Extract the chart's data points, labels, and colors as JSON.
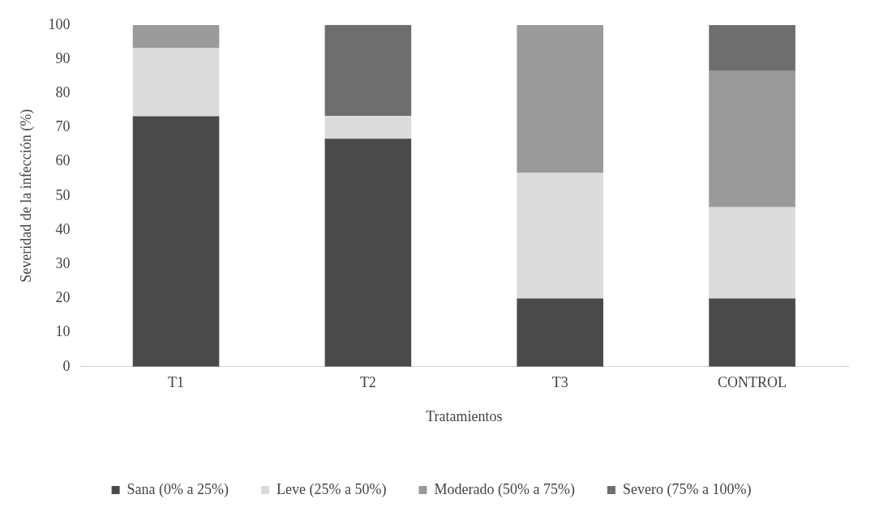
{
  "chart_data": {
    "type": "bar",
    "stacked": true,
    "xlabel": "Tratamientos",
    "ylabel": "Severidad de la infección (%)",
    "categories": [
      "T1",
      "T2",
      "T3",
      "CONTROL"
    ],
    "series": [
      {
        "name": "Sana (0% a 25%)",
        "color": "#4a4a4a",
        "values": [
          73.3,
          66.7,
          20,
          20
        ]
      },
      {
        "name": "Leve (25% a 50%)",
        "color": "#dcdcdc",
        "values": [
          20,
          6.7,
          36.7,
          26.7
        ]
      },
      {
        "name": "Moderado (50% a 75%)",
        "color": "#9a9a9a",
        "values": [
          6.7,
          0,
          43.3,
          40
        ]
      },
      {
        "name": "Severo (75% a 100%)",
        "color": "#6e6e6e",
        "values": [
          0,
          26.7,
          0,
          13.3
        ]
      }
    ],
    "ylim": [
      0,
      100
    ],
    "yticks": [
      0,
      10,
      20,
      30,
      40,
      50,
      60,
      70,
      80,
      90,
      100
    ],
    "grid": false,
    "legend": "bottom"
  }
}
